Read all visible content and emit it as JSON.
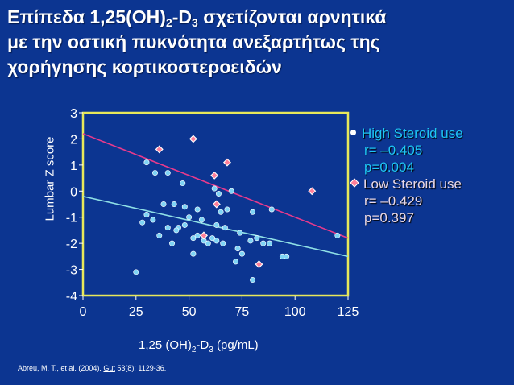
{
  "title": {
    "line1_a": "Επίπεδα 1,25(OH)",
    "line1_sub1": "2",
    "line1_b": "-D",
    "line1_sub2": "3",
    "line1_c": " σχετίζονται αρνητικά",
    "line2": "με την οστική πυκνότητα ανεξαρτήτως της",
    "line3": "χορήγησης κορτικοστεροειδών"
  },
  "legend": {
    "high": {
      "label": "High Steroid use",
      "r": "r= –0.405",
      "p": "p=0.004",
      "color": "#1ec5f5"
    },
    "low": {
      "label": "Low Steroid use",
      "r": "r= –0.429",
      "p": "p=0.397",
      "color": "#e8d8e8"
    }
  },
  "axes": {
    "xlabel_a": "1,25 (OH)",
    "xlabel_sub1": "2",
    "xlabel_b": "-D",
    "xlabel_sub2": "3",
    "xlabel_c": " (pg/mL)",
    "ylabel": "Lumbar Z score"
  },
  "citation": {
    "text_a": "Abreu, M. T., et al. (2004). ",
    "journal": "Gut",
    "text_b": " 53(8): 1129-36."
  },
  "chart_data": {
    "type": "scatter",
    "xlim": [
      0,
      125
    ],
    "ylim": [
      -4,
      3
    ],
    "xticks": [
      "0",
      "25",
      "50",
      "75",
      "100",
      "125"
    ],
    "yticks": [
      "-4",
      "-3",
      "-2",
      "-1",
      "0",
      "1",
      "2",
      "3"
    ],
    "plot_background": "#0c3591",
    "frame_color": "#e8e85a",
    "series": [
      {
        "marker": "circle",
        "color": "#7fd4f5",
        "points": [
          [
            30,
            1.1
          ],
          [
            34,
            0.7
          ],
          [
            40,
            0.7
          ],
          [
            47,
            0.3
          ],
          [
            62,
            0.1
          ],
          [
            64,
            -0.1
          ],
          [
            70,
            0
          ],
          [
            38,
            -0.5
          ],
          [
            43,
            -0.5
          ],
          [
            48,
            -0.6
          ],
          [
            54,
            -0.7
          ],
          [
            65,
            -0.8
          ],
          [
            68,
            -0.7
          ],
          [
            80,
            -0.8
          ],
          [
            89,
            -0.7
          ],
          [
            28,
            -1.2
          ],
          [
            30,
            -0.9
          ],
          [
            33,
            -1.1
          ],
          [
            40,
            -1.4
          ],
          [
            45,
            -1.4
          ],
          [
            48,
            -1.3
          ],
          [
            50,
            -1.0
          ],
          [
            56,
            -1.1
          ],
          [
            63,
            -1.3
          ],
          [
            67,
            -1.4
          ],
          [
            74,
            -1.6
          ],
          [
            36,
            -1.7
          ],
          [
            44,
            -1.5
          ],
          [
            52,
            -1.8
          ],
          [
            54,
            -1.7
          ],
          [
            57,
            -1.9
          ],
          [
            59,
            -2.0
          ],
          [
            61,
            -1.8
          ],
          [
            63,
            -1.9
          ],
          [
            66,
            -2.0
          ],
          [
            42,
            -2.0
          ],
          [
            52,
            -2.4
          ],
          [
            73,
            -2.2
          ],
          [
            75,
            -2.4
          ],
          [
            79,
            -1.9
          ],
          [
            82,
            -1.8
          ],
          [
            85,
            -2.0
          ],
          [
            88,
            -2.0
          ],
          [
            94,
            -2.5
          ],
          [
            96,
            -2.5
          ],
          [
            72,
            -2.7
          ],
          [
            25,
            -3.1
          ],
          [
            80,
            -3.4
          ],
          [
            120,
            -1.7
          ]
        ]
      },
      {
        "marker": "diamond",
        "color": "#ff7f9a",
        "points": [
          [
            36,
            1.6
          ],
          [
            52,
            2.0
          ],
          [
            62,
            0.6
          ],
          [
            68,
            1.1
          ],
          [
            63,
            -0.5
          ],
          [
            57,
            -1.7
          ],
          [
            83,
            -2.8
          ],
          [
            108,
            0
          ]
        ]
      }
    ],
    "fit_lines": [
      {
        "color": "#e83a8c",
        "from": [
          0,
          2.2
        ],
        "to": [
          125,
          -1.8
        ]
      },
      {
        "color": "#8fe0e6",
        "from": [
          0,
          -0.2
        ],
        "to": [
          125,
          -2.5
        ]
      }
    ]
  }
}
